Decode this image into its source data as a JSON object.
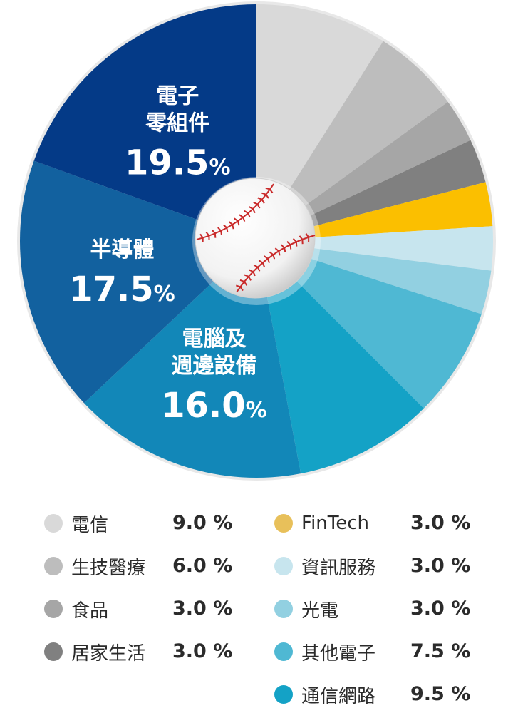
{
  "chart_data": {
    "type": "pie",
    "start": "12 o'clock, clockwise",
    "slices": [
      {
        "name": "電信",
        "value": 9.0,
        "display": "9.0 %",
        "color": "#d9d9d9"
      },
      {
        "name": "生技醫療",
        "value": 6.0,
        "display": "6.0 %",
        "color": "#bdbdbd"
      },
      {
        "name": "食品",
        "value": 3.0,
        "display": "3.0 %",
        "color": "#a6a6a6"
      },
      {
        "name": "居家生活",
        "value": 3.0,
        "display": "3.0 %",
        "color": "#808080"
      },
      {
        "name": "FinTech",
        "value": 3.0,
        "display": "3.0 %",
        "color": "#fbbf00"
      },
      {
        "name": "資訊服務",
        "value": 3.0,
        "display": "3.0 %",
        "color": "#c7e5ee"
      },
      {
        "name": "光電",
        "value": 3.0,
        "display": "3.0 %",
        "color": "#92d0e1"
      },
      {
        "name": "其他電子",
        "value": 7.5,
        "display": "7.5 %",
        "color": "#4fb8d3"
      },
      {
        "name": "通信網路",
        "value": 9.5,
        "display": "9.5 %",
        "color": "#14a2c6"
      },
      {
        "name": "電腦及週邊設備",
        "value": 16.0,
        "display": "16.0%",
        "color": "#1287b8",
        "label_lines": [
          "電腦及",
          "週邊設備"
        ],
        "pct_number": "16.0",
        "pct_sign": "%"
      },
      {
        "name": "半導體",
        "value": 17.5,
        "display": "17.5%",
        "color": "#12619f",
        "label_lines": [
          "半導體"
        ],
        "pct_number": "17.5",
        "pct_sign": "%"
      },
      {
        "name": "電子零組件",
        "value": 19.5,
        "display": "19.5%",
        "color": "#043a87",
        "label_lines": [
          "電子",
          "零組件"
        ],
        "pct_number": "19.5",
        "pct_sign": "%"
      }
    ],
    "center_icon": "baseball-icon"
  },
  "legend": {
    "left": [
      {
        "name": "電信",
        "value": "9.0 %",
        "color": "#d9d9d9"
      },
      {
        "name": "生技醫療",
        "value": "6.0 %",
        "color": "#bdbdbd"
      },
      {
        "name": "食品",
        "value": "3.0 %",
        "color": "#a6a6a6"
      },
      {
        "name": "居家生活",
        "value": "3.0 %",
        "color": "#808080"
      }
    ],
    "right": [
      {
        "name": "FinTech",
        "value": "3.0 %",
        "color": "#e8c05a"
      },
      {
        "name": "資訊服務",
        "value": "3.0 %",
        "color": "#c7e5ee"
      },
      {
        "name": "光電",
        "value": "3.0 %",
        "color": "#92d0e1"
      },
      {
        "name": "其他電子",
        "value": "7.5 %",
        "color": "#4fb8d3"
      },
      {
        "name": "通信網路",
        "value": "9.5 %",
        "color": "#14a2c6"
      }
    ]
  }
}
